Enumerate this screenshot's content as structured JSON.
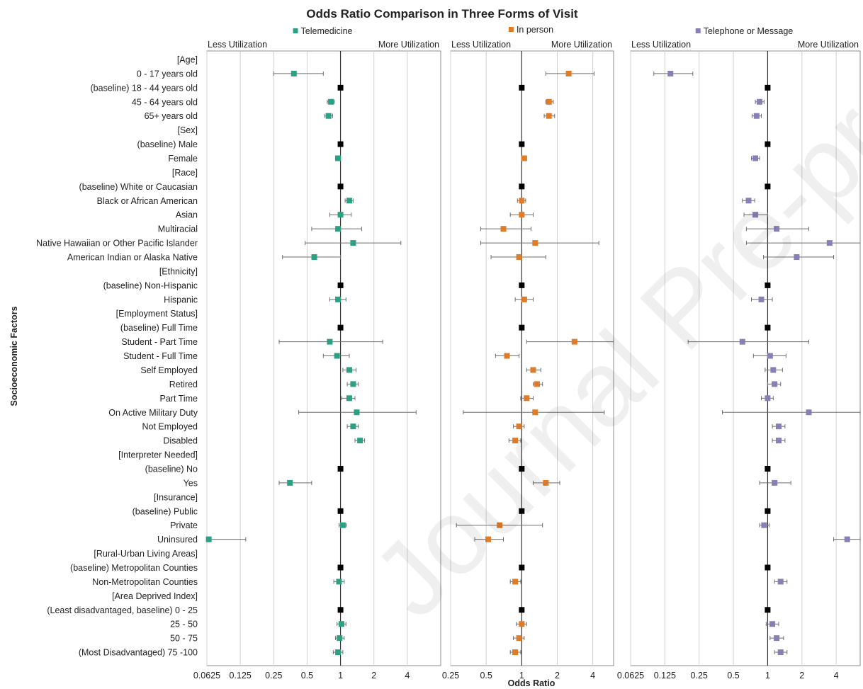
{
  "chart_data": {
    "type": "scatter",
    "title": "Odds Ratio Comparison in Three Forms of Visit",
    "xlabel": "Odds Ratio",
    "ylabel": "Socioeconomic Factors",
    "x_scale": "log2",
    "rows": [
      "[Age]",
      "0 - 17 years old",
      "(baseline) 18 - 44 years old",
      "45 - 64 years old",
      "65+ years old",
      "[Sex]",
      "(baseline) Male",
      "Female",
      "[Race]",
      "(baseline) White or Caucasian",
      "Black or African American",
      "Asian",
      "Multiracial",
      "Native Hawaiian or Other Pacific Islander",
      "American Indian or Alaska Native",
      "[Ethnicity]",
      "(baseline) Non-Hispanic",
      "Hispanic",
      "[Employment Status]",
      "(baseline) Full Time",
      "Student - Part Time",
      "Student - Full Time",
      "Self Employed",
      "Retired",
      "Part Time",
      "On Active Military Duty",
      "Not Employed",
      "Disabled",
      "[Interpreter Needed]",
      "(baseline) No",
      "Yes",
      "[Insurance]",
      "(baseline) Public",
      "Private",
      "Uninsured",
      "[Rural-Urban Living Areas]",
      "(baseline) Metropolitan Counties",
      "Non-Metropolitan Counties",
      "[Area Deprived Index]",
      "(Least disadvantaged, baseline) 0 - 25",
      "25 - 50",
      "50 - 75",
      "(Most Disadvantaged) 75 -100"
    ],
    "baseline_color": "#000000",
    "panels": [
      {
        "name": "Telemedicine",
        "color": "#2ca083",
        "left_label": "Less Utilization",
        "right_label": "More Utilization",
        "xlim": [
          0.0625,
          8
        ],
        "ticks": [
          0.0625,
          0.125,
          0.25,
          0.5,
          1,
          2,
          4
        ],
        "tick_labels": [
          "0.0625",
          "0.125",
          "0.25",
          "0.5",
          "1",
          "2",
          "4"
        ],
        "points": [
          null,
          [
            0.38,
            0.25,
            0.7
          ],
          [
            1,
            null,
            null
          ],
          [
            0.82,
            0.76,
            0.88
          ],
          [
            0.78,
            0.72,
            0.85
          ],
          null,
          [
            1,
            null,
            null
          ],
          [
            0.95,
            0.9,
            1.0
          ],
          null,
          [
            1,
            null,
            null
          ],
          [
            1.2,
            1.1,
            1.3
          ],
          [
            1.0,
            0.8,
            1.25
          ],
          [
            0.95,
            0.55,
            1.55
          ],
          [
            1.3,
            0.48,
            3.5
          ],
          [
            0.58,
            0.3,
            1.0
          ],
          null,
          [
            1,
            null,
            null
          ],
          [
            0.95,
            0.8,
            1.12
          ],
          null,
          [
            1,
            null,
            null
          ],
          [
            0.8,
            0.28,
            2.4
          ],
          [
            0.93,
            0.7,
            1.2
          ],
          [
            1.2,
            1.05,
            1.38
          ],
          [
            1.3,
            1.15,
            1.45
          ],
          [
            1.2,
            1.02,
            1.35
          ],
          [
            1.4,
            0.42,
            4.8
          ],
          [
            1.3,
            1.15,
            1.45
          ],
          [
            1.5,
            1.35,
            1.65
          ],
          null,
          [
            1,
            null,
            null
          ],
          [
            0.35,
            0.28,
            0.55
          ],
          null,
          [
            1,
            null,
            null
          ],
          [
            1.05,
            0.97,
            1.13
          ],
          [
            0.065,
            0.055,
            0.14
          ],
          null,
          [
            1,
            null,
            null
          ],
          [
            0.97,
            0.87,
            1.08
          ],
          null,
          [
            1,
            null,
            null
          ],
          [
            1.02,
            0.93,
            1.12
          ],
          [
            0.98,
            0.9,
            1.08
          ],
          [
            0.95,
            0.86,
            1.05
          ]
        ]
      },
      {
        "name": "In person",
        "color": "#e07b28",
        "left_label": "Less Utilization",
        "right_label": "More Utilization",
        "xlim": [
          0.25,
          6
        ],
        "ticks": [
          0.25,
          0.5,
          1,
          2,
          4
        ],
        "tick_labels": [
          "0.25",
          "0.5",
          "1",
          "2",
          "4"
        ],
        "points": [
          null,
          [
            2.5,
            1.6,
            4.1
          ],
          [
            1,
            null,
            null
          ],
          [
            1.7,
            1.6,
            1.85
          ],
          [
            1.7,
            1.55,
            1.9
          ],
          null,
          [
            1,
            null,
            null
          ],
          [
            1.05,
            1.0,
            1.1
          ],
          null,
          [
            1,
            null,
            null
          ],
          [
            1.0,
            0.92,
            1.08
          ],
          [
            1.0,
            0.8,
            1.25
          ],
          [
            0.7,
            0.45,
            1.2
          ],
          [
            1.3,
            0.45,
            4.5
          ],
          [
            0.95,
            0.55,
            1.6
          ],
          null,
          [
            1,
            null,
            null
          ],
          [
            1.05,
            0.88,
            1.25
          ],
          null,
          [
            1,
            null,
            null
          ],
          [
            2.8,
            1.1,
            6.0
          ],
          [
            0.75,
            0.6,
            0.95
          ],
          [
            1.25,
            1.1,
            1.45
          ],
          [
            1.35,
            1.25,
            1.5
          ],
          [
            1.1,
            0.98,
            1.25
          ],
          [
            1.3,
            0.32,
            5.0
          ],
          [
            0.95,
            0.85,
            1.05
          ],
          [
            0.88,
            0.78,
            0.98
          ],
          null,
          [
            1,
            null,
            null
          ],
          [
            1.6,
            1.25,
            2.1
          ],
          null,
          [
            1,
            null,
            null
          ],
          [
            0.65,
            0.28,
            1.5
          ],
          [
            0.52,
            0.4,
            0.7
          ],
          null,
          [
            1,
            null,
            null
          ],
          [
            0.88,
            0.8,
            0.98
          ],
          null,
          [
            1,
            null,
            null
          ],
          [
            1.0,
            0.9,
            1.1
          ],
          [
            0.95,
            0.85,
            1.05
          ],
          [
            0.88,
            0.8,
            0.98
          ]
        ]
      },
      {
        "name": "Telephone or Message",
        "color": "#8a7fb5",
        "left_label": "Less Utilization",
        "right_label": "More Utilization",
        "xlim": [
          0.0625,
          6.5
        ],
        "ticks": [
          0.0625,
          0.125,
          0.25,
          0.5,
          1,
          2,
          4
        ],
        "tick_labels": [
          "0.0625",
          "0.125",
          "0.25",
          "0.5",
          "1",
          "2",
          "4"
        ],
        "points": [
          null,
          [
            0.14,
            0.1,
            0.22
          ],
          [
            1,
            null,
            null
          ],
          [
            0.85,
            0.78,
            0.93
          ],
          [
            0.8,
            0.73,
            0.88
          ],
          null,
          [
            1,
            null,
            null
          ],
          [
            0.78,
            0.72,
            0.85
          ],
          null,
          [
            1,
            null,
            null
          ],
          [
            0.68,
            0.6,
            0.77
          ],
          [
            0.78,
            0.62,
            1.0
          ],
          [
            1.2,
            0.65,
            2.3
          ],
          [
            3.5,
            0.65,
            8.0
          ],
          [
            1.8,
            0.92,
            3.8
          ],
          null,
          [
            1,
            null,
            null
          ],
          [
            0.88,
            0.72,
            1.1
          ],
          null,
          [
            1,
            null,
            null
          ],
          [
            0.6,
            0.2,
            2.3
          ],
          [
            1.05,
            0.75,
            1.45
          ],
          [
            1.12,
            0.95,
            1.35
          ],
          [
            1.15,
            1.0,
            1.3
          ],
          [
            1.0,
            0.88,
            1.12
          ],
          [
            2.3,
            0.4,
            6.5
          ],
          [
            1.25,
            1.1,
            1.42
          ],
          [
            1.25,
            1.1,
            1.42
          ],
          null,
          [
            1,
            null,
            null
          ],
          [
            1.15,
            0.85,
            1.6
          ],
          null,
          [
            1,
            null,
            null
          ],
          [
            0.93,
            0.85,
            1.03
          ],
          [
            5.0,
            3.8,
            6.5
          ],
          null,
          [
            1,
            null,
            null
          ],
          [
            1.3,
            1.15,
            1.48
          ],
          null,
          [
            1,
            null,
            null
          ],
          [
            1.1,
            0.97,
            1.25
          ],
          [
            1.2,
            1.05,
            1.38
          ],
          [
            1.3,
            1.15,
            1.48
          ]
        ]
      }
    ]
  },
  "watermark": "Journal Pre-proof"
}
